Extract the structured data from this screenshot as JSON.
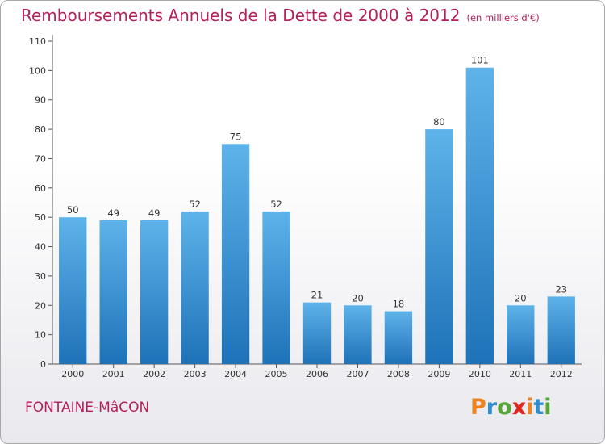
{
  "title": "Remboursements Annuels de la Dette de 2000 à 2012",
  "subtitle": "(en milliers d'€)",
  "footer": {
    "city": "FONTAINE-MâCON",
    "logo_text": "Proxiti"
  },
  "colors": {
    "title": "#b21f5b",
    "bar_top": "#5eb3ea",
    "bar_bottom": "#1e72b8",
    "logo": [
      "#f0821e",
      "#2e8fd0",
      "#56a535",
      "#e2261c",
      "#f0821e",
      "#2e8fd0",
      "#56a535"
    ]
  },
  "chart_data": {
    "type": "bar",
    "title": "Remboursements Annuels de la Dette de 2000 à 2012",
    "subtitle": "(en milliers d'€)",
    "categories": [
      "2000",
      "2001",
      "2002",
      "2003",
      "2004",
      "2005",
      "2006",
      "2007",
      "2008",
      "2009",
      "2010",
      "2011",
      "2012"
    ],
    "values": [
      50,
      49,
      49,
      52,
      75,
      52,
      21,
      20,
      18,
      80,
      101,
      20,
      23
    ],
    "ylim": [
      0,
      110
    ],
    "yticks": [
      0,
      10,
      20,
      30,
      40,
      50,
      60,
      70,
      80,
      90,
      100,
      110
    ],
    "grid": false,
    "data_labels": true
  }
}
